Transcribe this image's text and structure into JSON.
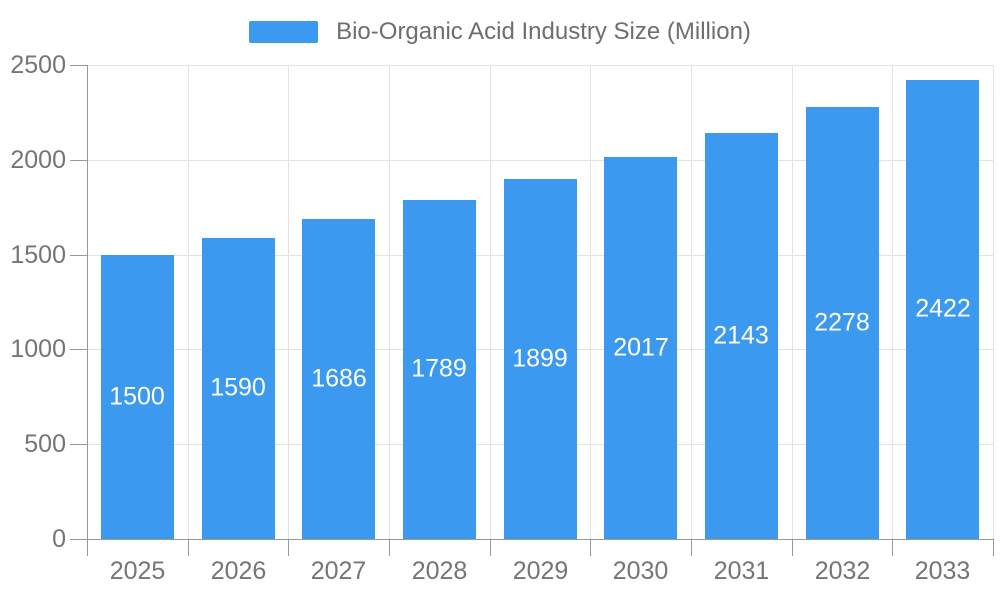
{
  "chart_data": {
    "type": "bar",
    "title": "Bio-Organic Acid Industry Size (Million)",
    "legend": {
      "entries": [
        "Bio-Organic Acid Industry Size (Million)"
      ],
      "position": "top-center"
    },
    "categories": [
      "2025",
      "2026",
      "2027",
      "2028",
      "2029",
      "2030",
      "2031",
      "2032",
      "2033"
    ],
    "values": [
      1500,
      1590,
      1686,
      1789,
      1899,
      2017,
      2143,
      2278,
      2422
    ],
    "value_labels_inside_bars": true,
    "xlabel": "",
    "ylabel": "",
    "ylim": [
      0,
      2500
    ],
    "y_ticks": [
      0,
      500,
      1000,
      1500,
      2000,
      2500
    ],
    "grid": true,
    "colors": {
      "bar": "#3b99f0",
      "value_label": "#ffffff",
      "axis_text": "#757575",
      "legend_text": "#6e6e6e",
      "grid_line": "#e2e2e2",
      "axis_line": "#999999",
      "background": "#ffffff"
    }
  }
}
